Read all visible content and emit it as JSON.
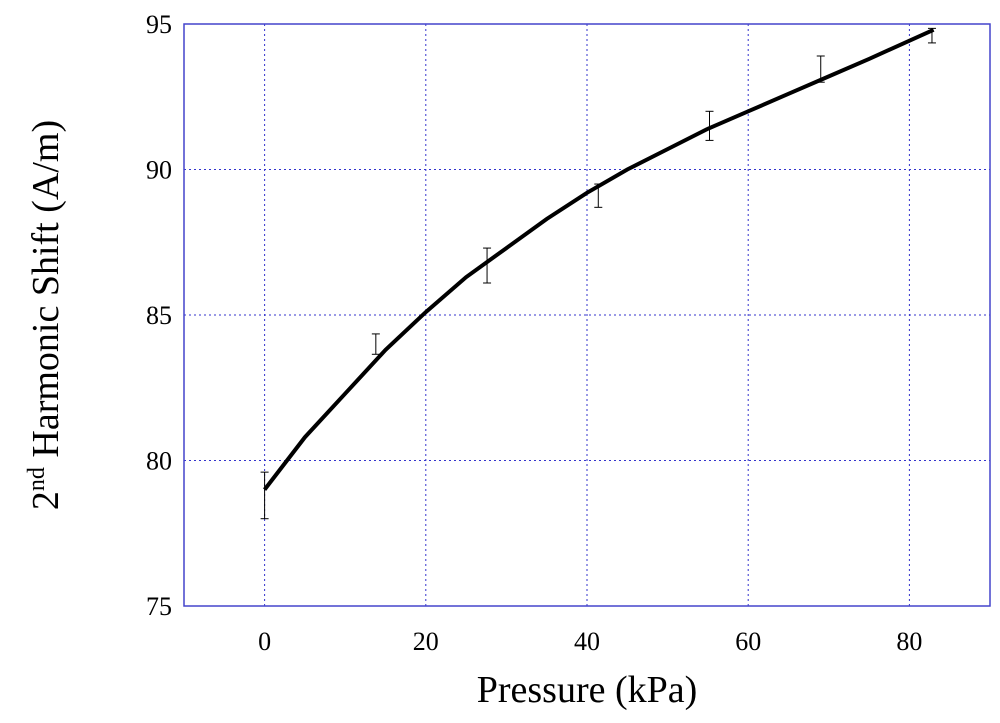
{
  "chart_data": {
    "type": "line",
    "xlabel": "Pressure (kPa)",
    "ylabel": {
      "base": "2",
      "sup": "nd",
      "rest": " Harmonic Shift (A/m)"
    },
    "x": [
      0,
      5,
      10,
      15,
      20,
      25,
      30,
      35,
      40,
      45,
      50,
      55,
      60,
      65,
      70,
      75,
      83
    ],
    "values": [
      79.0,
      80.8,
      82.3,
      83.8,
      85.1,
      86.3,
      87.3,
      88.3,
      89.2,
      90.0,
      90.7,
      91.4,
      92.0,
      92.6,
      93.2,
      93.8,
      94.8
    ],
    "color": "#000000",
    "errorbars": {
      "x": [
        0,
        13.8,
        27.6,
        41.4,
        55.2,
        69,
        82.8
      ],
      "values": [
        78.8,
        84.0,
        86.7,
        89.1,
        91.5,
        93.45,
        94.6
      ],
      "errors": [
        0.8,
        0.35,
        0.6,
        0.4,
        0.5,
        0.45,
        0.25
      ],
      "color": "#000000"
    },
    "xlim": [
      -10,
      90
    ],
    "xticks": [
      0,
      20,
      40,
      60,
      80
    ],
    "ylim": [
      75,
      95
    ],
    "yticks": [
      75,
      80,
      85,
      90,
      95
    ],
    "grid": true,
    "grid_color": "#3333cc",
    "axis_color": "#4444cc"
  }
}
